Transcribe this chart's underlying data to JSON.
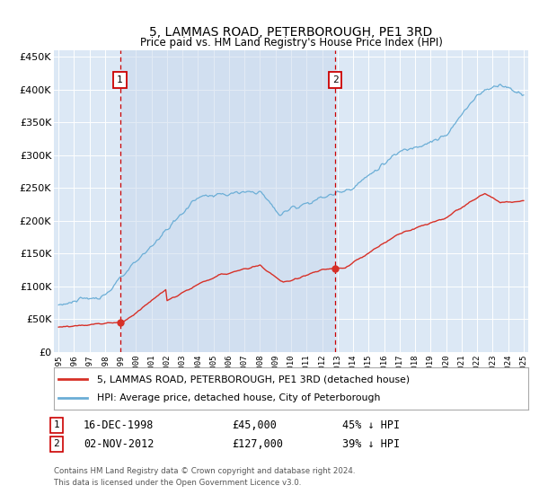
{
  "title": "5, LAMMAS ROAD, PETERBOROUGH, PE1 3RD",
  "subtitle": "Price paid vs. HM Land Registry's House Price Index (HPI)",
  "bg_color": "#dce8f5",
  "plot_bg_color": "#dce8f5",
  "band_color": "#cfe0f0",
  "red_line_label": "5, LAMMAS ROAD, PETERBOROUGH, PE1 3RD (detached house)",
  "blue_line_label": "HPI: Average price, detached house, City of Peterborough",
  "annotation1_date": "16-DEC-1998",
  "annotation1_price": "£45,000",
  "annotation1_hpi": "45% ↓ HPI",
  "annotation1_year": 1998.96,
  "annotation1_value": 45000,
  "annotation2_date": "02-NOV-2012",
  "annotation2_price": "£127,000",
  "annotation2_hpi": "39% ↓ HPI",
  "annotation2_year": 2012.84,
  "annotation2_value": 127000,
  "yticks": [
    0,
    50000,
    100000,
    150000,
    200000,
    250000,
    300000,
    350000,
    400000,
    450000
  ],
  "ylim": [
    0,
    460000
  ],
  "xlim_start": 1994.7,
  "xlim_end": 2025.3,
  "footer": "Contains HM Land Registry data © Crown copyright and database right 2024.\nThis data is licensed under the Open Government Licence v3.0."
}
